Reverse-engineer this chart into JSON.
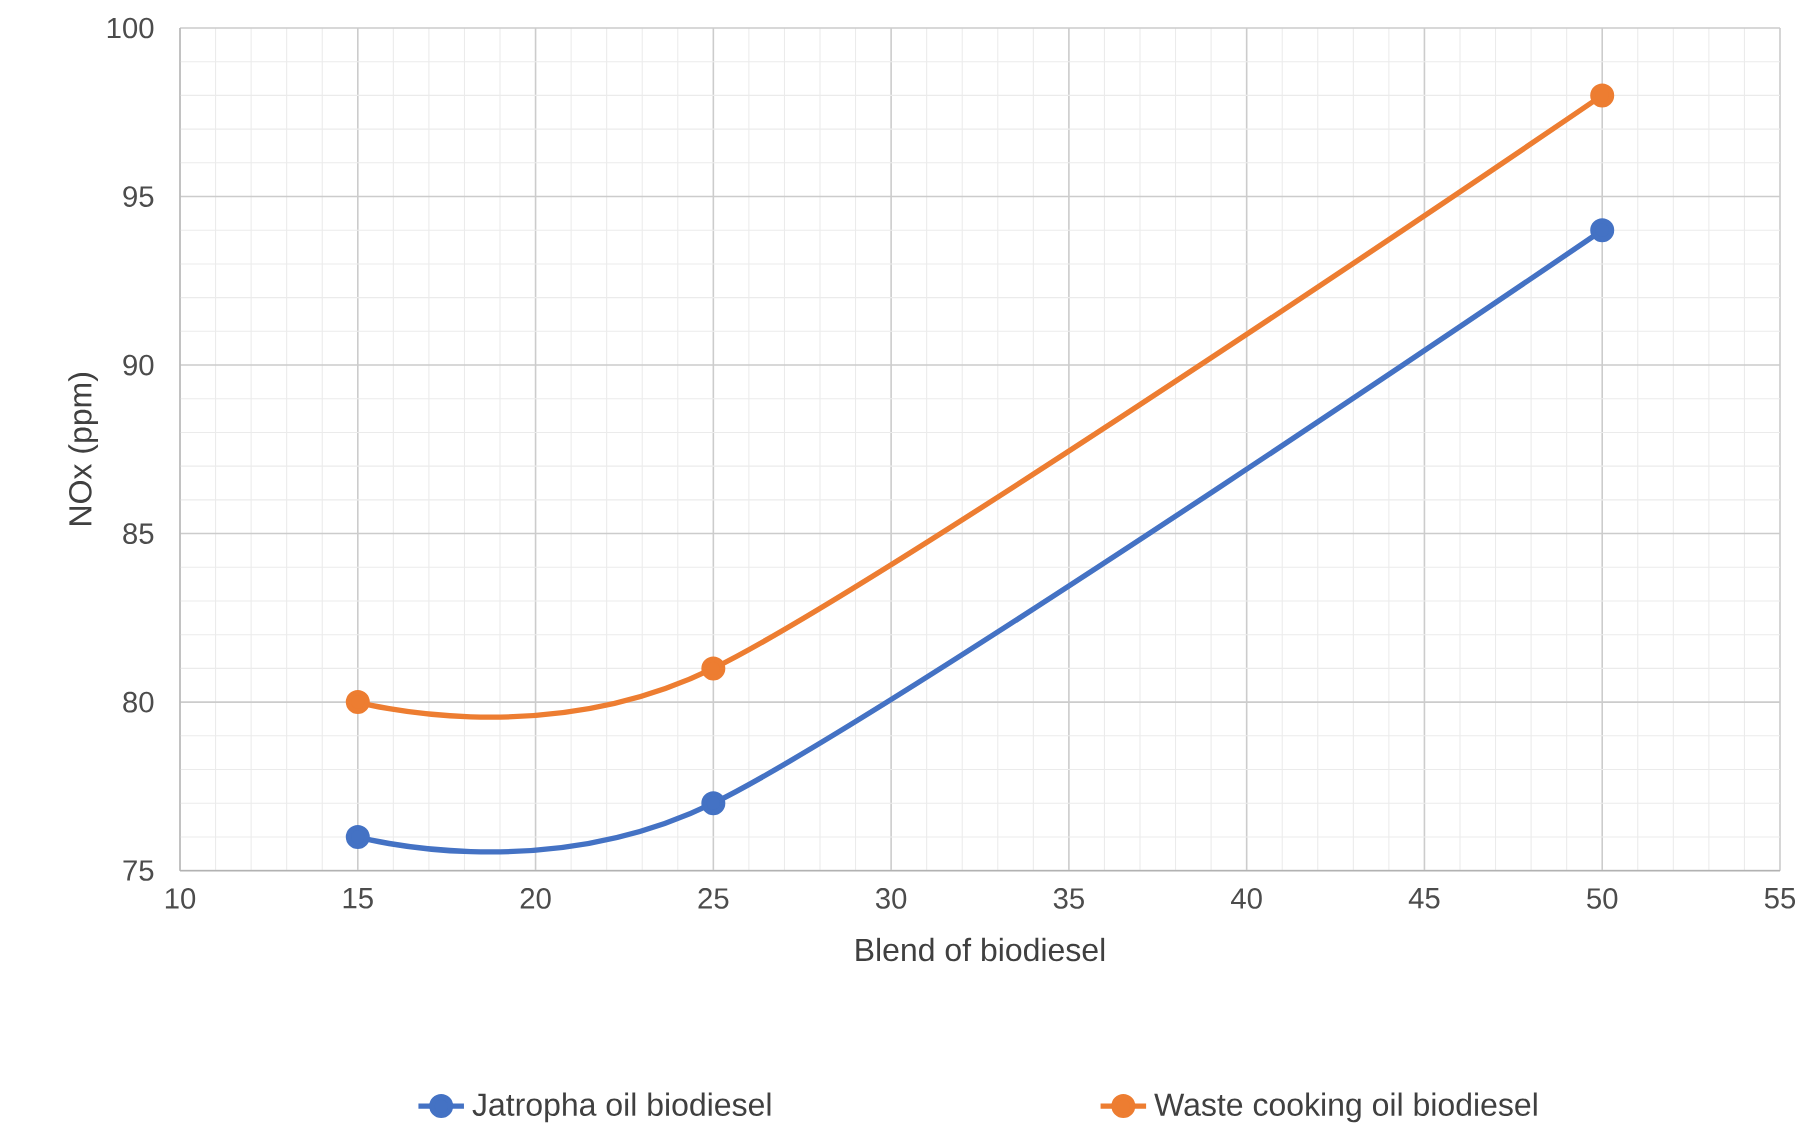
{
  "chart_data": {
    "type": "line",
    "xlabel": "Blend of biodiesel",
    "ylabel": "NOx (ppm)",
    "series": [
      {
        "name": "Jatropha oil biodiesel",
        "color": "#4472c4",
        "x": [
          15,
          25,
          50
        ],
        "values": [
          76,
          77,
          94
        ]
      },
      {
        "name": "Waste cooking oil biodiesel",
        "color": "#ed7d31",
        "x": [
          15,
          25,
          50
        ],
        "values": [
          80,
          81,
          98
        ]
      }
    ],
    "xlim": [
      10,
      55
    ],
    "xticks": [
      10,
      15,
      20,
      25,
      30,
      35,
      40,
      45,
      50,
      55
    ],
    "ylim": [
      75,
      100
    ],
    "yticks": [
      75,
      80,
      85,
      90,
      95,
      100
    ],
    "grid": true,
    "legend": "bottom",
    "marker": "circle",
    "line_style": "solid"
  }
}
